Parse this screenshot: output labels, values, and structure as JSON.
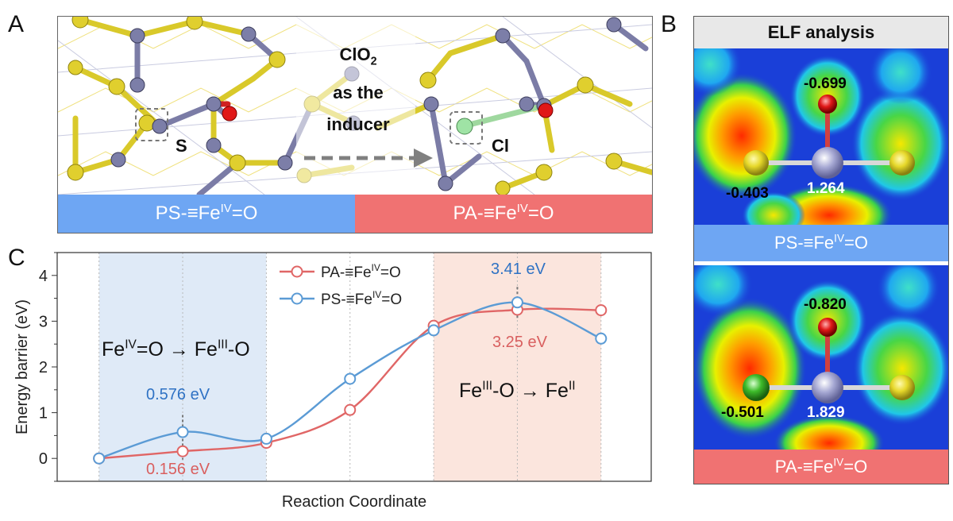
{
  "panels": {
    "a": {
      "letter": "A",
      "labels": {
        "s": "S",
        "cl": "Cl",
        "inducer_1": "ClO",
        "inducer_1_sub": "2",
        "inducer_2": "as the",
        "inducer_3": "inducer"
      },
      "bars": {
        "left": {
          "pre": "PS-≡Fe",
          "sup": "IV",
          "post": "=O",
          "color": "#6ea6f3"
        },
        "right": {
          "pre": "PA-≡Fe",
          "sup": "IV",
          "post": "=O",
          "color": "#f07272"
        }
      }
    },
    "b": {
      "letter": "B",
      "title": "ELF analysis",
      "top": {
        "o_charge": "-0.699",
        "side_charge": "-0.403",
        "fe_charge": "1.264",
        "bar": {
          "pre": "PS-≡Fe",
          "sup": "IV",
          "post": "=O",
          "color": "#6ea6f3"
        }
      },
      "bottom": {
        "o_charge": "-0.820",
        "side_charge": "-0.501",
        "fe_charge": "1.829",
        "bar": {
          "pre": "PA-≡Fe",
          "sup": "IV",
          "post": "=O",
          "color": "#f07272"
        }
      }
    },
    "c": {
      "letter": "C",
      "region_left": {
        "a1": "Fe",
        "a1sup": "IV",
        "a2": "=O → Fe",
        "a2sup": "III",
        "a3": "-O"
      },
      "region_right": {
        "b1": "Fe",
        "b1sup": "III",
        "b2": "-O → Fe",
        "b2sup": "II"
      },
      "annotations": {
        "ps_low": "0.576 eV",
        "pa_low": "0.156 eV",
        "ps_high": "3.41 eV",
        "pa_high": "3.25 eV"
      }
    }
  },
  "chart_data": {
    "type": "line",
    "xlabel": "Reaction Coordinate",
    "ylabel": "Energy barrier (eV)",
    "ylim": [
      -0.5,
      4.5
    ],
    "yticks": [
      "0",
      "1",
      "2",
      "3",
      "4"
    ],
    "x": [
      1,
      2,
      3,
      4,
      5,
      6,
      7
    ],
    "xlim": [
      0.5,
      7.6
    ],
    "series": [
      {
        "name_pre": "PA-≡Fe",
        "name_sup": "IV",
        "name_post": "=O",
        "color": "#e06666",
        "values": [
          0.0,
          0.156,
          0.34,
          1.06,
          2.9,
          3.25,
          3.24
        ]
      },
      {
        "name_pre": "PS-≡Fe",
        "name_sup": "IV",
        "name_post": "=O",
        "color": "#5b9bd5",
        "values": [
          0.0,
          0.576,
          0.43,
          1.74,
          2.8,
          3.41,
          2.62
        ]
      }
    ],
    "regions": [
      {
        "from": 1,
        "to": 3,
        "color": "#dfeaf7"
      },
      {
        "from": 5,
        "to": 7,
        "color": "#fbe5dd"
      }
    ],
    "legend": "top-center"
  }
}
